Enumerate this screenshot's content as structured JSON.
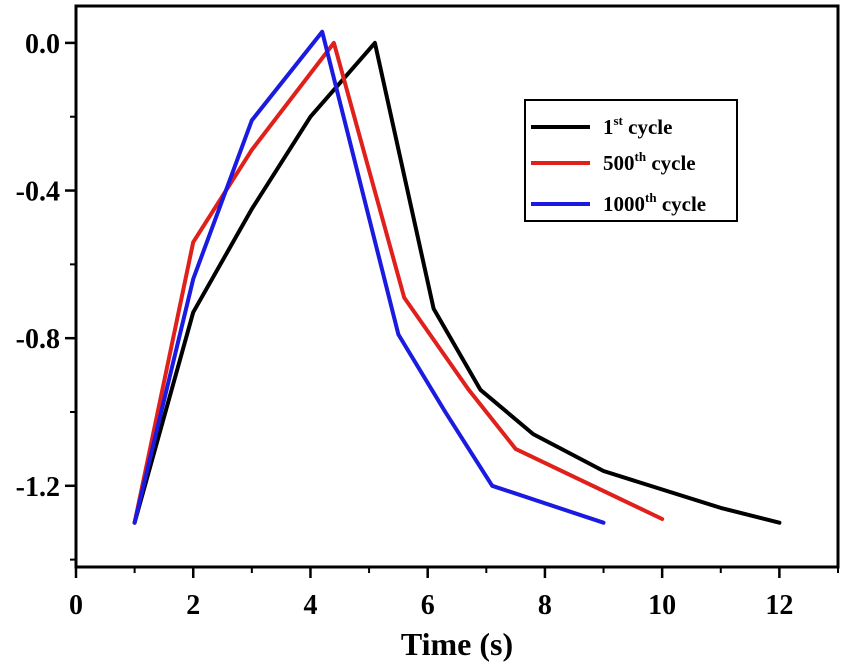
{
  "chart_data": {
    "type": "line",
    "title": "",
    "xlabel": "Time (s)",
    "ylabel": "",
    "xlim": [
      0,
      13
    ],
    "ylim": [
      -1.42,
      0.1
    ],
    "xticks": [
      0,
      2,
      4,
      6,
      8,
      10,
      12
    ],
    "yticks": [
      0.0,
      -0.4,
      -0.8,
      -1.2
    ],
    "xtick_labels": [
      "0",
      "2",
      "4",
      "6",
      "8",
      "10",
      "12"
    ],
    "ytick_labels": [
      "0.0",
      "-0.4",
      "-0.8",
      "-1.2"
    ],
    "grid": false,
    "legend_position": "top-right",
    "series": [
      {
        "name": "1st cycle",
        "label_parts": [
          "1",
          "st",
          " cycle"
        ],
        "color": "#000000",
        "x": [
          1,
          2,
          3,
          4,
          5.1,
          6.1,
          6.9,
          7.8,
          9,
          10,
          11,
          12
        ],
        "y": [
          -1.3,
          -0.73,
          -0.45,
          -0.2,
          0.0,
          -0.72,
          -0.94,
          -1.06,
          -1.16,
          -1.21,
          -1.26,
          -1.3
        ]
      },
      {
        "name": "500th cycle",
        "label_parts": [
          "500",
          "th",
          " cycle"
        ],
        "color": "#e0201a",
        "x": [
          1,
          2,
          3,
          4.4,
          5.6,
          6.7,
          7.5,
          10
        ],
        "y": [
          -1.3,
          -0.54,
          -0.29,
          0.0,
          -0.69,
          -0.94,
          -1.1,
          -1.29
        ]
      },
      {
        "name": "1000th cycle",
        "label_parts": [
          "1000",
          "th",
          " cycle"
        ],
        "color": "#1a1ae0",
        "x": [
          1,
          2,
          3,
          4.2,
          5.5,
          6.3,
          7.1,
          9
        ],
        "y": [
          -1.3,
          -0.64,
          -0.21,
          0.03,
          -0.79,
          -1.0,
          -1.2,
          -1.3
        ]
      }
    ]
  }
}
